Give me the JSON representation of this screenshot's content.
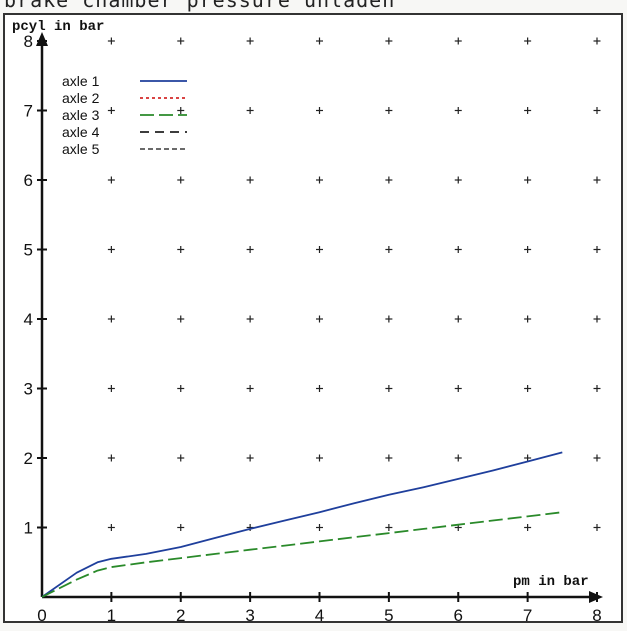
{
  "page_title": "brake chamber pressure  unladen",
  "chart_data": {
    "type": "line",
    "xlabel": "pm in bar",
    "ylabel": "pcyl in bar",
    "xlim": [
      0,
      8
    ],
    "ylim": [
      0,
      8
    ],
    "x_ticks": [
      "0",
      "1",
      "2",
      "3",
      "4",
      "5",
      "6",
      "7",
      "8"
    ],
    "y_ticks": [
      "1",
      "2",
      "3",
      "4",
      "5",
      "6",
      "7",
      "8"
    ],
    "grid": "plus-markers",
    "legend_position": "top-left",
    "series": [
      {
        "name": "axle 1",
        "color": "#1f3f9c",
        "dash": "solid",
        "x": [
          0,
          0.5,
          0.8,
          1.0,
          1.5,
          2.0,
          2.5,
          3.0,
          3.5,
          4.0,
          4.5,
          5.0,
          5.5,
          6.0,
          6.5,
          7.0,
          7.5
        ],
        "y": [
          0,
          0.35,
          0.5,
          0.55,
          0.62,
          0.72,
          0.85,
          0.98,
          1.1,
          1.22,
          1.35,
          1.47,
          1.58,
          1.7,
          1.82,
          1.95,
          2.08
        ]
      },
      {
        "name": "axle 2",
        "color": "#d42a2a",
        "dash": "dotted",
        "x": [],
        "y": []
      },
      {
        "name": "axle 3",
        "color": "#2a8a2a",
        "dash": "long-dash",
        "x": [
          0,
          0.5,
          0.8,
          1.0,
          1.5,
          2.0,
          2.5,
          3.0,
          3.5,
          4.0,
          4.5,
          5.0,
          5.5,
          6.0,
          6.5,
          7.0,
          7.5
        ],
        "y": [
          0,
          0.25,
          0.38,
          0.43,
          0.5,
          0.56,
          0.62,
          0.68,
          0.74,
          0.8,
          0.86,
          0.92,
          0.98,
          1.04,
          1.1,
          1.16,
          1.22
        ]
      },
      {
        "name": "axle 4",
        "color": "#222222",
        "dash": "dash",
        "x": [],
        "y": []
      },
      {
        "name": "axle 5",
        "color": "#555555",
        "dash": "short-dash",
        "x": [],
        "y": []
      }
    ]
  }
}
